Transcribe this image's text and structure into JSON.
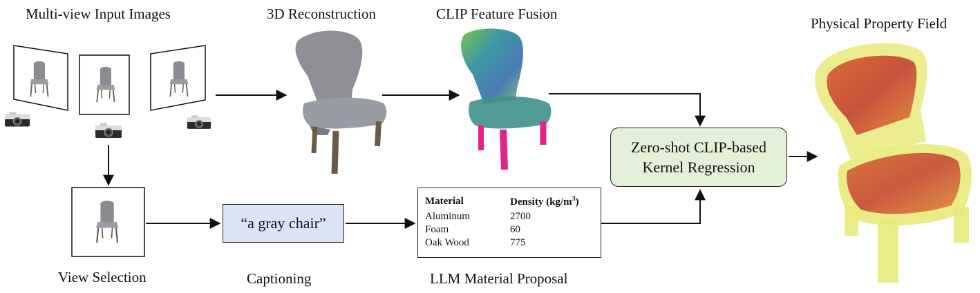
{
  "labels": {
    "multiview": "Multi-view Input Images",
    "reconstruction": "3D Reconstruction",
    "clip_fusion": "CLIP Feature Fusion",
    "property_field": "Physical Property Field",
    "view_selection": "View Selection",
    "captioning": "Captioning",
    "llm_proposal": "LLM Material Proposal"
  },
  "caption_text": "“a gray chair”",
  "kernel": {
    "line1": "Zero-shot CLIP-based",
    "line2": "Kernel Regression"
  },
  "material_table": {
    "col_material": "Material",
    "col_density": "Density (kg/m",
    "col_density_sup": "3",
    "col_density_end": ")",
    "rows": [
      {
        "material": "Aluminum",
        "density": "2700"
      },
      {
        "material": "Foam",
        "density": "60"
      },
      {
        "material": "Oak Wood",
        "density": "775"
      }
    ]
  },
  "colors": {
    "caption_fill": "#dbe4f5",
    "kernel_fill": "#e5f0d9",
    "chair_gray": "#8a8c92",
    "field_yellow": "#e8ea7a",
    "field_orange": "#d8652e",
    "clip_teal": "#2f8f9a",
    "clip_magenta": "#e0248a"
  }
}
